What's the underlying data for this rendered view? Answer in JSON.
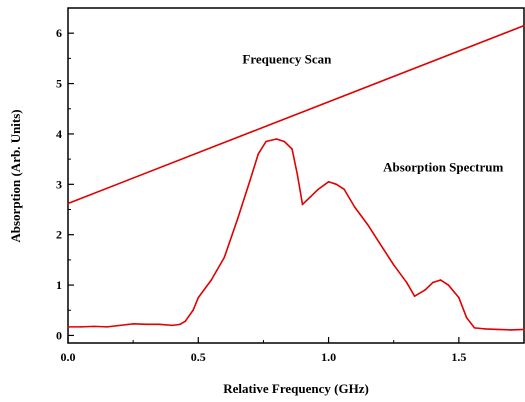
{
  "chart_data": {
    "type": "line",
    "xlabel": "Relative Frequency (GHz)",
    "ylabel": "Absorption (Arb. Units)",
    "xlim": [
      0.0,
      1.75
    ],
    "ylim": [
      -0.15,
      6.5
    ],
    "x_ticks": [
      {
        "value": 0.0,
        "label": "0.0"
      },
      {
        "value": 0.5,
        "label": "0.5"
      },
      {
        "value": 1.0,
        "label": "1.0"
      },
      {
        "value": 1.5,
        "label": "1.5"
      }
    ],
    "y_ticks": [
      {
        "value": 0,
        "label": "0"
      },
      {
        "value": 1,
        "label": "1"
      },
      {
        "value": 2,
        "label": "2"
      },
      {
        "value": 3,
        "label": "3"
      },
      {
        "value": 4,
        "label": "4"
      },
      {
        "value": 5,
        "label": "5"
      },
      {
        "value": 6,
        "label": "6"
      }
    ],
    "grid": false,
    "legend": "none",
    "series": [
      {
        "label": "Frequency Scan",
        "color": "#e00000",
        "x": [
          0.0,
          1.75
        ],
        "y": [
          2.62,
          6.15
        ]
      },
      {
        "label": "Absorption Spectrum",
        "color": "#e00000",
        "x": [
          0.0,
          0.05,
          0.1,
          0.15,
          0.2,
          0.25,
          0.3,
          0.35,
          0.4,
          0.43,
          0.45,
          0.48,
          0.5,
          0.55,
          0.6,
          0.65,
          0.7,
          0.73,
          0.76,
          0.8,
          0.83,
          0.86,
          0.88,
          0.9,
          0.93,
          0.96,
          1.0,
          1.03,
          1.06,
          1.1,
          1.15,
          1.2,
          1.25,
          1.3,
          1.33,
          1.37,
          1.4,
          1.43,
          1.46,
          1.5,
          1.53,
          1.56,
          1.6,
          1.65,
          1.7,
          1.75
        ],
        "y": [
          0.17,
          0.17,
          0.18,
          0.17,
          0.2,
          0.23,
          0.22,
          0.22,
          0.2,
          0.22,
          0.28,
          0.5,
          0.75,
          1.1,
          1.55,
          2.3,
          3.1,
          3.6,
          3.85,
          3.9,
          3.85,
          3.7,
          3.2,
          2.6,
          2.75,
          2.9,
          3.05,
          3.0,
          2.9,
          2.55,
          2.2,
          1.8,
          1.4,
          1.05,
          0.78,
          0.9,
          1.05,
          1.1,
          1.0,
          0.75,
          0.35,
          0.15,
          0.13,
          0.12,
          0.11,
          0.12
        ]
      }
    ],
    "annotations": [
      {
        "text": "Frequency Scan",
        "x": 0.84,
        "y": 5.4
      },
      {
        "text": "Absorption Spectrum",
        "x": 1.44,
        "y": 3.25
      }
    ]
  }
}
